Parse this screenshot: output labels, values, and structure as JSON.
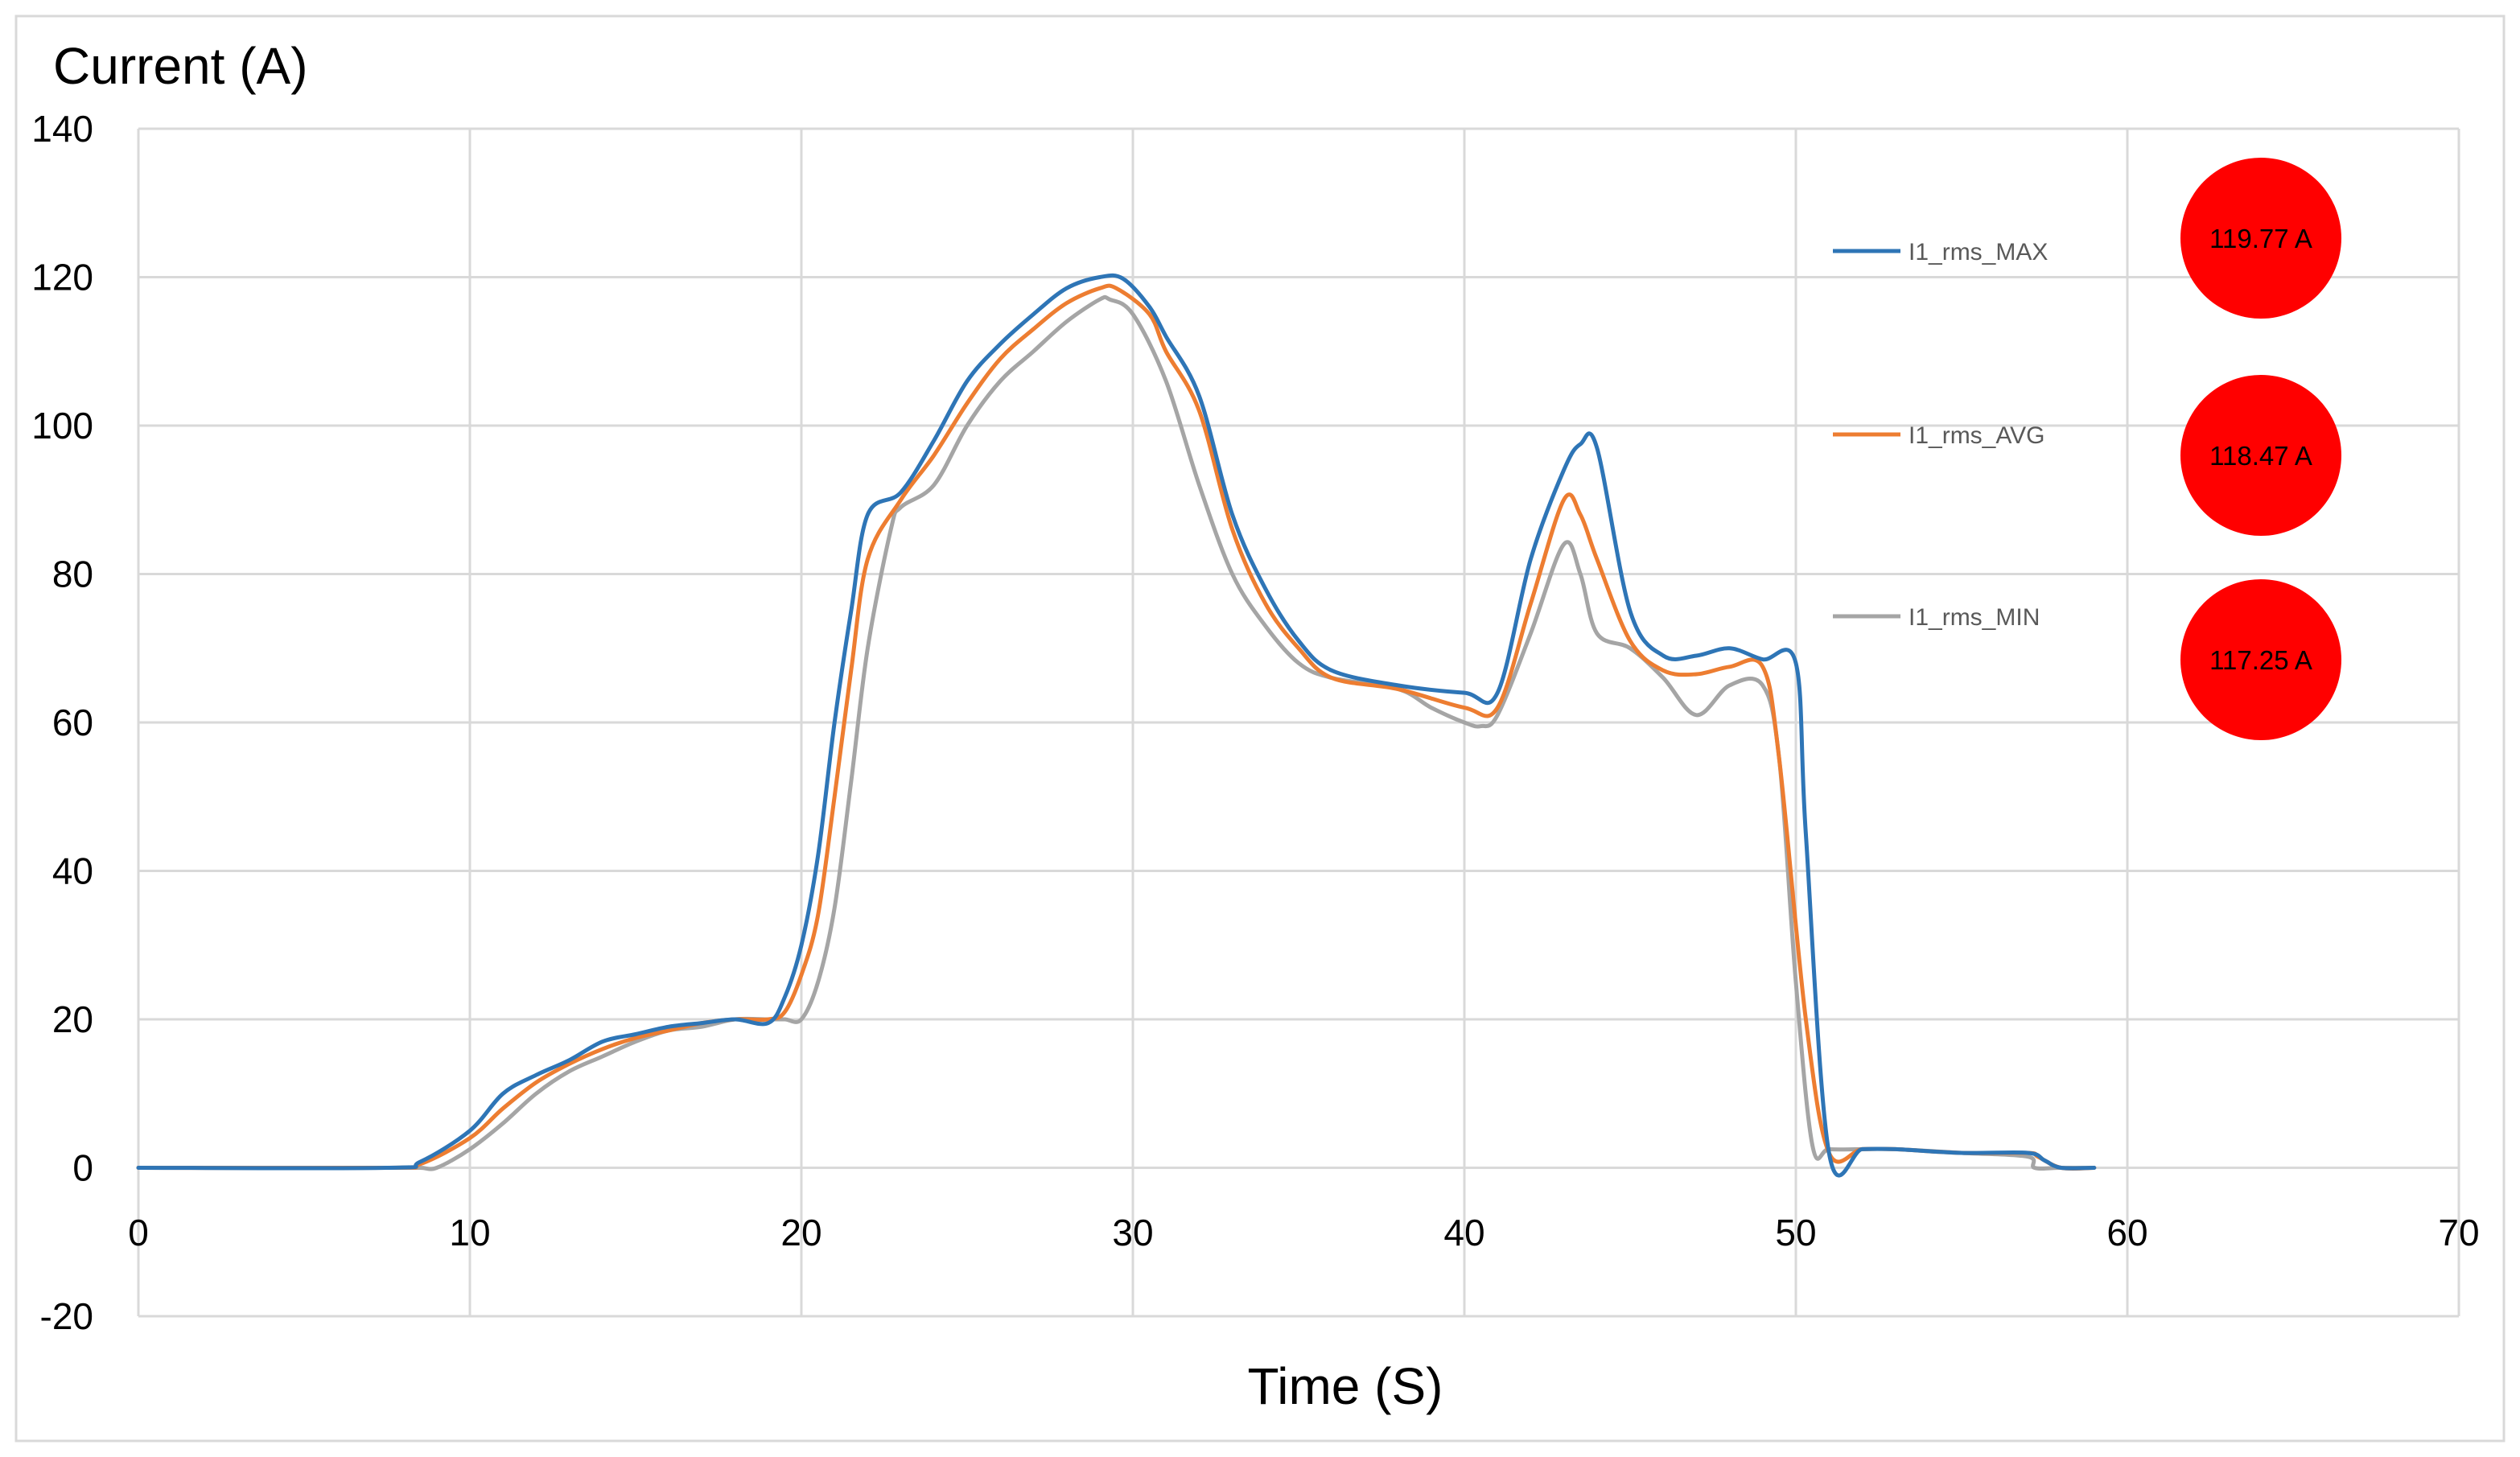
{
  "chart_data": {
    "type": "line",
    "title": "",
    "ylabel": "Current (A)",
    "xlabel": "Time (S)",
    "xlim": [
      0,
      70
    ],
    "ylim": [
      -20,
      140
    ],
    "x_ticks": [
      "0",
      "10",
      "20",
      "30",
      "40",
      "50",
      "60",
      "70"
    ],
    "y_ticks": [
      "-20",
      "0",
      "20",
      "40",
      "60",
      "80",
      "100",
      "120",
      "140"
    ],
    "grid": true,
    "legend_placement": "right",
    "series": [
      {
        "name": "I1_rms_MAX",
        "color": "#2e75b6",
        "x": [
          0,
          7.5,
          8.5,
          10,
          11,
          12,
          13,
          14,
          15,
          16,
          17,
          18,
          19,
          19.5,
          20,
          20.5,
          21,
          21.5,
          22,
          23,
          24,
          25,
          26,
          27,
          28,
          29,
          29.7,
          30.5,
          31,
          32,
          33,
          34,
          35,
          36,
          38,
          40,
          41,
          42,
          43,
          43.5,
          44,
          45,
          46,
          47,
          48,
          49,
          50,
          50.3,
          51,
          52,
          53,
          55,
          57,
          57.5,
          58,
          59
        ],
        "y": [
          0,
          0,
          0.8,
          5,
          10,
          12.5,
          14.5,
          17,
          18,
          19,
          19.5,
          20,
          19.5,
          23,
          30,
          42,
          60,
          75,
          88,
          91,
          98,
          106,
          111,
          115,
          118.5,
          120,
          119.8,
          116,
          112,
          104,
          88,
          78,
          71,
          67,
          65,
          64,
          64,
          82,
          94,
          97.5,
          97,
          75,
          69,
          69,
          70,
          68.5,
          68,
          45,
          2,
          2.5,
          2.5,
          2,
          2,
          1,
          0,
          0
        ]
      },
      {
        "name": "I1_rms_AVG",
        "color": "#ed7d31",
        "x": [
          0,
          7.5,
          8.5,
          10,
          11,
          12,
          13,
          14,
          15,
          16,
          17,
          18,
          19,
          19.5,
          20,
          20.5,
          21,
          21.5,
          22,
          23,
          24,
          25,
          26,
          27,
          28,
          29,
          29.5,
          30.5,
          31,
          32,
          33,
          34,
          35,
          36,
          38,
          40,
          41,
          42,
          43,
          43.5,
          44,
          45,
          46,
          47,
          48,
          49,
          49.5,
          50.3,
          51,
          52,
          53,
          55,
          57,
          57.3,
          58,
          59
        ],
        "y": [
          0,
          0,
          0.5,
          4,
          8,
          11.5,
          14,
          16,
          17.5,
          18.5,
          19.5,
          20,
          20,
          21,
          26,
          34,
          50,
          67,
          82,
          90,
          96,
          103,
          109,
          113,
          116.5,
          118.5,
          118.5,
          115,
          110,
          102,
          86,
          76,
          70,
          66,
          64.5,
          62,
          62,
          76,
          90,
          88,
          82,
          71,
          67,
          66.5,
          67.5,
          67.5,
          55,
          20,
          2,
          2.5,
          2.5,
          2,
          2,
          1.5,
          0,
          0
        ]
      },
      {
        "name": "I1_rms_MIN",
        "color": "#a5a5a5",
        "x": [
          0,
          7.5,
          8.5,
          9,
          10,
          11,
          12,
          13,
          14,
          15,
          16,
          17,
          18,
          19,
          19.5,
          20,
          20.5,
          21,
          21.5,
          22,
          22.7,
          23,
          24,
          25,
          26,
          27,
          28,
          29,
          29.3,
          30,
          31,
          32,
          33,
          34,
          35,
          36,
          38,
          39,
          40,
          40.5,
          41,
          42,
          43,
          43.5,
          44,
          45,
          46,
          47,
          48,
          49,
          49.5,
          50,
          50.5,
          51,
          52,
          53,
          55,
          57,
          57.2,
          58,
          59
        ],
        "y": [
          0,
          0,
          0,
          0,
          2.5,
          6,
          10,
          13,
          15,
          17,
          18.5,
          19,
          20,
          20,
          20,
          20,
          25,
          35,
          52,
          70,
          86,
          89,
          92,
          100,
          106,
          110,
          114,
          117,
          117,
          115,
          106,
          92,
          80,
          73,
          68,
          66,
          64.5,
          62,
          60,
          59.5,
          61,
          72,
          84,
          80,
          72,
          70,
          66,
          61,
          65,
          65,
          55,
          25,
          3,
          2.5,
          2.5,
          2.5,
          2,
          1.5,
          0,
          0,
          0
        ]
      }
    ],
    "annotations": [
      {
        "series": "I1_rms_MAX",
        "label": "119.77 A"
      },
      {
        "series": "I1_rms_AVG",
        "label": "118.47 A"
      },
      {
        "series": "I1_rms_MIN",
        "label": "117.25 A"
      }
    ],
    "annotation_color": "#ff0000"
  }
}
